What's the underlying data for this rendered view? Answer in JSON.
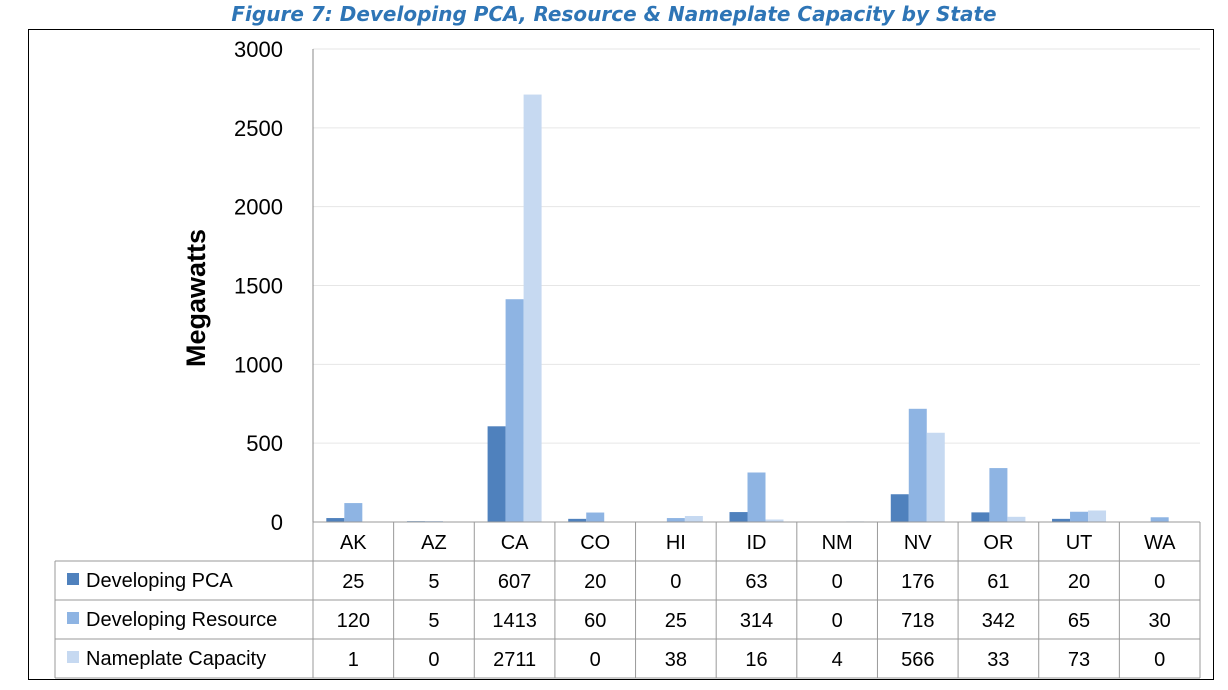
{
  "title": "Figure 7: Developing PCA, Resource & Nameplate Capacity by State",
  "chart_data": {
    "type": "bar",
    "categories": [
      "AK",
      "AZ",
      "CA",
      "CO",
      "HI",
      "ID",
      "NM",
      "NV",
      "OR",
      "UT",
      "WA"
    ],
    "series": [
      {
        "name": "Developing PCA",
        "color": "#4F81BD",
        "values": [
          25,
          5,
          607,
          20,
          0,
          63,
          0,
          176,
          61,
          20,
          0
        ]
      },
      {
        "name": "Developing Resource",
        "color": "#8EB4E3",
        "values": [
          120,
          5,
          1413,
          60,
          25,
          314,
          0,
          718,
          342,
          65,
          30
        ]
      },
      {
        "name": "Nameplate Capacity",
        "color": "#C6D9F1",
        "values": [
          1,
          0,
          2711,
          0,
          38,
          16,
          4,
          566,
          33,
          73,
          0
        ]
      }
    ],
    "ylabel": "Megawatts",
    "ylim": [
      0,
      3000
    ],
    "yticks": [
      0,
      500,
      1000,
      1500,
      2000,
      2500,
      3000
    ],
    "grid": true,
    "legend": "data-table"
  }
}
